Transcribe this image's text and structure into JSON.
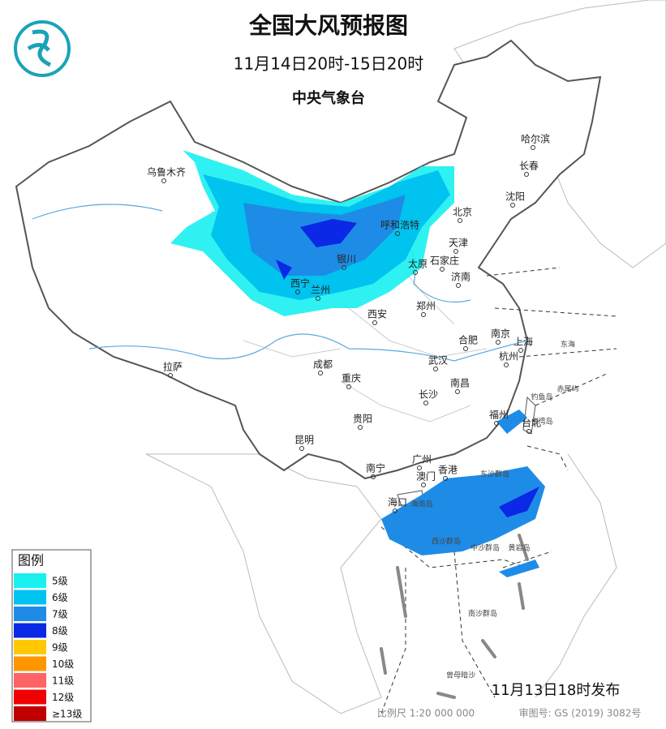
{
  "header": {
    "title": "全国大风预报图",
    "period": "11月14日20时-15日20时",
    "agency": "中央气象台"
  },
  "cities": [
    "乌鲁木齐",
    "哈尔滨",
    "长春",
    "沈阳",
    "北京",
    "呼和浩特",
    "天津",
    "银川",
    "太原",
    "石家庄",
    "济南",
    "西宁",
    "兰州",
    "郑州",
    "西安",
    "南京",
    "合肥",
    "上海",
    "杭州",
    "武汉",
    "成都",
    "拉萨",
    "重庆",
    "南昌",
    "长沙",
    "福州",
    "台北",
    "贵阳",
    "昆明",
    "南宁",
    "广州",
    "澳门",
    "香港",
    "海口"
  ],
  "places": [
    "东海",
    "海南岛",
    "台湾岛",
    "东沙群岛",
    "西沙群岛",
    "中沙群岛",
    "黄岩岛",
    "南沙群岛",
    "曾母暗沙",
    "钓鱼岛",
    "赤尾屿"
  ],
  "legend": {
    "title": "图例",
    "items": [
      {
        "label": "5级",
        "color": "#19f0f0"
      },
      {
        "label": "6级",
        "color": "#00c3f0"
      },
      {
        "label": "7级",
        "color": "#1e8ce6"
      },
      {
        "label": "8级",
        "color": "#0a28e6"
      },
      {
        "label": "9级",
        "color": "#ffc800"
      },
      {
        "label": "10级",
        "color": "#ff9600"
      },
      {
        "label": "11级",
        "color": "#ff6464"
      },
      {
        "label": "12级",
        "color": "#f00000"
      },
      {
        "label": "≥13级",
        "color": "#c00000"
      }
    ]
  },
  "footer": {
    "issued": "11月13日18时发布",
    "scale": "比例尺 1:20 000 000",
    "approval": "审图号: GS (2019) 3082号"
  }
}
